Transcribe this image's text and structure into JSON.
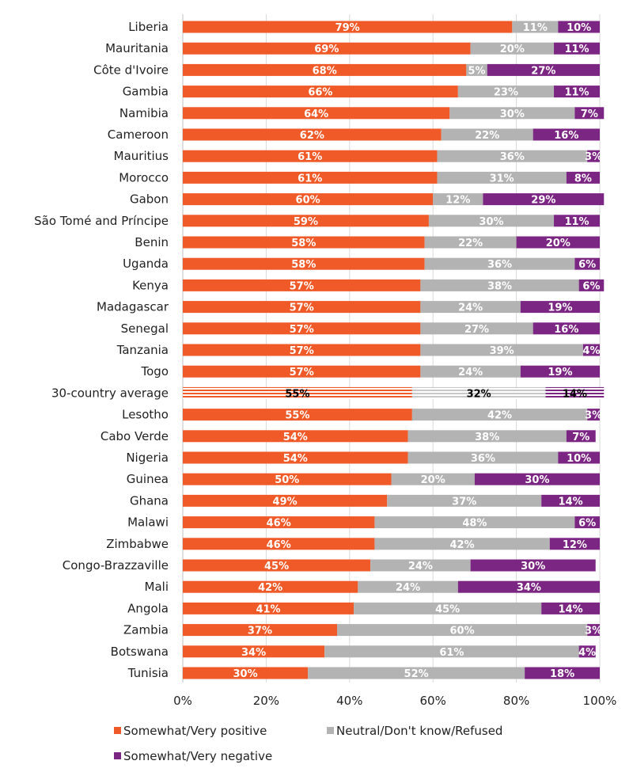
{
  "chart_data": {
    "type": "bar",
    "orientation": "horizontal",
    "stacked": true,
    "categories": [
      "Liberia",
      "Mauritania",
      "Côte d'Ivoire",
      "Gambia",
      "Namibia",
      "Cameroon",
      "Mauritius",
      "Morocco",
      "Gabon",
      "São Tomé and Príncipe",
      "Benin",
      "Uganda",
      "Kenya",
      "Madagascar",
      "Senegal",
      "Tanzania",
      "Togo",
      "30-country average",
      "Lesotho",
      "Cabo Verde",
      "Nigeria",
      "Guinea",
      "Ghana",
      "Malawi",
      "Zimbabwe",
      "Congo-Brazzaville",
      "Mali",
      "Angola",
      "Zambia",
      "Botswana",
      "Tunisia"
    ],
    "highlight_category": "30-country average",
    "series": [
      {
        "name": "Somewhat/Very positive",
        "color": "#f05a28",
        "values": [
          79,
          69,
          68,
          66,
          64,
          62,
          61,
          61,
          60,
          59,
          58,
          58,
          57,
          57,
          57,
          57,
          57,
          55,
          55,
          54,
          54,
          50,
          49,
          46,
          46,
          45,
          42,
          41,
          37,
          34,
          30
        ]
      },
      {
        "name": "Neutral/Don't know/Refused",
        "color": "#b3b3b3",
        "values": [
          11,
          20,
          5,
          23,
          30,
          22,
          36,
          31,
          12,
          30,
          22,
          36,
          38,
          24,
          27,
          39,
          24,
          32,
          42,
          38,
          36,
          20,
          37,
          48,
          42,
          24,
          24,
          45,
          60,
          61,
          52
        ]
      },
      {
        "name": "Somewhat/Very negative",
        "color": "#7b2682",
        "values": [
          10,
          11,
          27,
          11,
          7,
          16,
          3,
          8,
          29,
          11,
          20,
          6,
          6,
          19,
          16,
          4,
          19,
          14,
          3,
          7,
          10,
          30,
          14,
          6,
          12,
          30,
          34,
          14,
          3,
          4,
          18
        ]
      }
    ],
    "xlim": [
      0,
      100
    ],
    "x_ticks": [
      "0%",
      "20%",
      "40%",
      "60%",
      "80%",
      "100%"
    ],
    "value_suffix": "%",
    "grid": true,
    "legend_position": "bottom"
  }
}
